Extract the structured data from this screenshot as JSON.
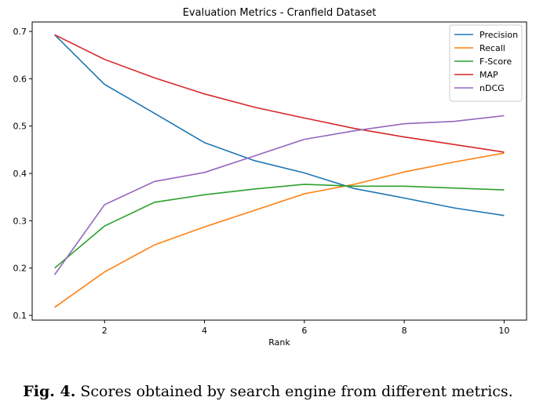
{
  "chart_data": {
    "type": "line",
    "title": "Evaluation Metrics - Cranfield Dataset",
    "xlabel": "Rank",
    "ylabel": "",
    "x": [
      1,
      2,
      3,
      4,
      5,
      6,
      7,
      8,
      9,
      10
    ],
    "xlim": [
      0.55,
      10.45
    ],
    "ylim": [
      0.09,
      0.72
    ],
    "xticks": [
      2,
      4,
      6,
      8,
      10
    ],
    "yticks": [
      0.1,
      0.2,
      0.3,
      0.4,
      0.5,
      0.6,
      0.7
    ],
    "grid": false,
    "legend_position": "top-right",
    "series": [
      {
        "name": "Precision",
        "color": "#1f77b4",
        "values": [
          0.693,
          0.588,
          0.527,
          0.465,
          0.427,
          0.401,
          0.368,
          0.348,
          0.327,
          0.311
        ]
      },
      {
        "name": "Recall",
        "color": "#ff7f0e",
        "values": [
          0.117,
          0.192,
          0.249,
          0.287,
          0.322,
          0.357,
          0.377,
          0.403,
          0.424,
          0.443
        ]
      },
      {
        "name": "F-Score",
        "color": "#2ca02c",
        "values": [
          0.2,
          0.289,
          0.339,
          0.355,
          0.367,
          0.377,
          0.373,
          0.373,
          0.369,
          0.365
        ]
      },
      {
        "name": "MAP",
        "color": "#d62728",
        "values": [
          0.693,
          0.641,
          0.602,
          0.568,
          0.54,
          0.517,
          0.495,
          0.477,
          0.461,
          0.445
        ]
      },
      {
        "name": "nDCG",
        "color": "#9467bd",
        "values": [
          0.186,
          0.334,
          0.383,
          0.402,
          0.437,
          0.472,
          0.49,
          0.505,
          0.51,
          0.522
        ]
      }
    ]
  },
  "caption": {
    "label": "Fig. 4.",
    "text": " Scores obtained by search engine from different metrics."
  }
}
